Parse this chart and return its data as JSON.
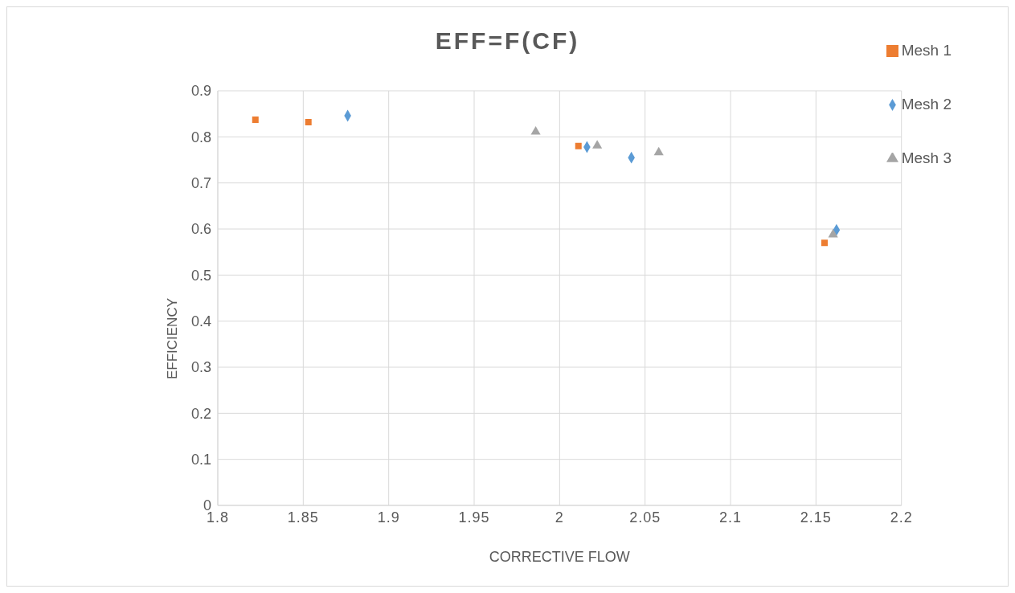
{
  "chart_data": {
    "type": "scatter",
    "title": "EFF=F(CF)",
    "xlabel": "CORRECTIVE FLOW",
    "ylabel": "EFFICIENCY",
    "xlim": [
      1.8,
      2.2
    ],
    "xticks": [
      1.8,
      1.85,
      1.9,
      1.95,
      2,
      2.05,
      2.1,
      2.15,
      2.2
    ],
    "ylim": [
      0,
      0.9
    ],
    "yticks": [
      0,
      0.1,
      0.2,
      0.3,
      0.4,
      0.5,
      0.6,
      0.7,
      0.8,
      0.9
    ],
    "grid": true,
    "legend": "top right",
    "series": [
      {
        "name": "Mesh 2",
        "color": "#5b9bd5",
        "marker": "diamond",
        "x": [
          1.876,
          2.016,
          2.042,
          2.162
        ],
        "values": [
          0.846,
          0.778,
          0.755,
          0.598
        ]
      },
      {
        "name": "Mesh 1",
        "color": "#ed7d31",
        "marker": "square",
        "x": [
          1.822,
          1.853,
          2.011,
          2.155
        ],
        "values": [
          0.837,
          0.832,
          0.78,
          0.57
        ]
      },
      {
        "name": "Mesh 3",
        "color": "#a5a5a5",
        "marker": "triangle",
        "x": [
          1.986,
          2.022,
          2.058,
          2.16
        ],
        "values": [
          0.811,
          0.781,
          0.766,
          0.588
        ]
      }
    ]
  }
}
